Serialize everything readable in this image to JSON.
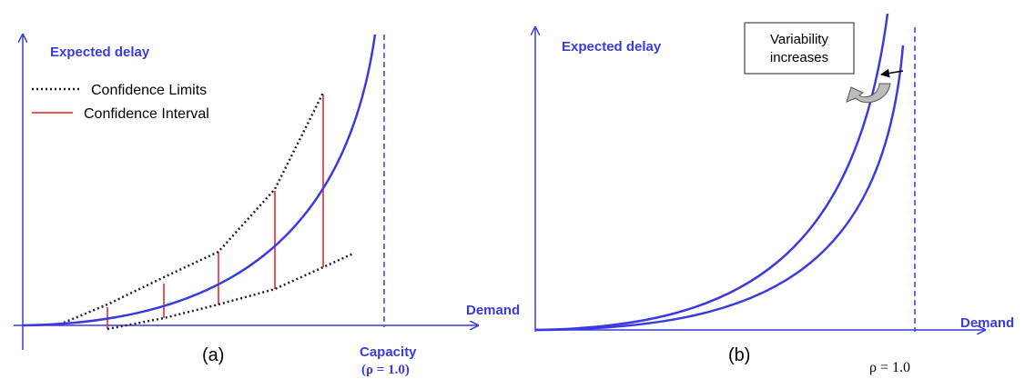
{
  "panel_a": {
    "y_axis_label": "Expected delay",
    "x_axis_label": "Demand",
    "legend": [
      "Confidence Limits",
      "Confidence Interval"
    ],
    "capacity_label": "Capacity",
    "capacity_note": "(ρ = 1.0)",
    "caption": "(a)"
  },
  "panel_b": {
    "y_axis_label": "Expected delay",
    "x_axis_label": "Demand",
    "callout": [
      "Variability",
      "increases"
    ],
    "capacity_note": "ρ = 1.0",
    "caption": "(b)"
  }
}
